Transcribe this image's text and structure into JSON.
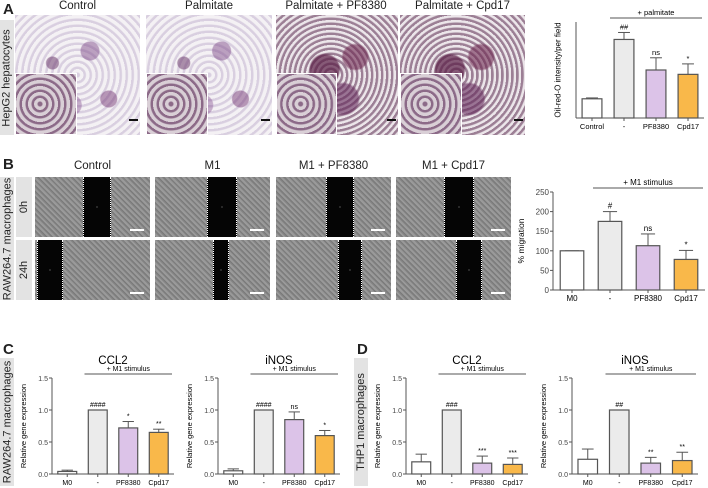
{
  "panel_labels": [
    "A",
    "B",
    "C",
    "D"
  ],
  "panelA": {
    "cell_label": "HepG2 hepatocytes",
    "conditions": [
      "Control",
      "Palmitate",
      "Palmitate + PF8380",
      "Palmitate + Cpd17"
    ]
  },
  "panelB": {
    "cell_label": "RAW264.7 macrophages",
    "conditions": [
      "Control",
      "M1",
      "M1 + PF8380",
      "M1 + Cpd17"
    ],
    "timepoints": [
      "0h",
      "24h"
    ]
  },
  "panelC": {
    "cell_label": "RAW264.7 macrophages"
  },
  "panelD": {
    "cell_label": "THP1 macrophages"
  },
  "colors": {
    "control": "#ffffff",
    "stimulus": "#ebebeb",
    "pf8380": "#dcc3e8",
    "cpd17": "#f9b84a",
    "edge": "#555555"
  },
  "chart_data": [
    {
      "id": "A",
      "type": "bar",
      "title": "",
      "ylabel": "Oil-red-O intensity/per field",
      "ylim": [
        0,
        5.5
      ],
      "yticks": [],
      "categories": [
        "Control",
        "-",
        "PF8380",
        "Cpd17"
      ],
      "values": [
        1.1,
        4.5,
        2.75,
        2.5
      ],
      "errors": [
        0.05,
        0.4,
        0.7,
        0.6
      ],
      "significance": [
        "",
        "##",
        "ns",
        "*"
      ],
      "bracket": {
        "label": "+ palmitate",
        "from": 1,
        "to": 3
      }
    },
    {
      "id": "B",
      "type": "bar",
      "title": "",
      "ylabel": "% migration",
      "ylim": [
        0,
        250
      ],
      "yticks": [
        "0",
        "50",
        "100",
        "150",
        "200",
        "250"
      ],
      "categories": [
        "M0",
        "-",
        "PF8380",
        "Cpd17"
      ],
      "values": [
        100,
        175,
        113,
        78
      ],
      "errors": [
        0,
        25,
        30,
        23
      ],
      "significance": [
        "",
        "#",
        "ns",
        "*"
      ],
      "bracket": {
        "label": "+ M1 stimulus",
        "from": 1,
        "to": 3
      }
    },
    {
      "id": "C1",
      "type": "bar",
      "title": "CCL2",
      "ylabel": "Relative gene expression",
      "ylim": [
        0,
        1.5
      ],
      "yticks": [
        "0.0",
        "0.5",
        "1.0",
        "1.5"
      ],
      "categories": [
        "M0",
        "-",
        "PF8380",
        "Cpd17"
      ],
      "values": [
        0.04,
        1.0,
        0.72,
        0.65
      ],
      "errors": [
        0.02,
        0,
        0.1,
        0.05
      ],
      "significance": [
        "",
        "####",
        "*",
        "**"
      ],
      "bracket": {
        "label": "+ M1 stimulus",
        "from": 1,
        "to": 3
      }
    },
    {
      "id": "C2",
      "type": "bar",
      "title": "iNOS",
      "ylabel": "Relative gene expression",
      "ylim": [
        0,
        1.5
      ],
      "yticks": [
        "0.0",
        "0.5",
        "1.0",
        "1.5"
      ],
      "categories": [
        "M0",
        "-",
        "PF8380",
        "Cpd17"
      ],
      "values": [
        0.05,
        1.0,
        0.85,
        0.6
      ],
      "errors": [
        0.03,
        0,
        0.12,
        0.08
      ],
      "significance": [
        "",
        "####",
        "ns",
        "*"
      ],
      "bracket": {
        "label": "+ M1 stimulus",
        "from": 1,
        "to": 3
      }
    },
    {
      "id": "D1",
      "type": "bar",
      "title": "CCL2",
      "ylabel": "Relative gene expression",
      "ylim": [
        0,
        1.5
      ],
      "yticks": [
        "0.0",
        "0.5",
        "1.0",
        "1.5"
      ],
      "categories": [
        "M0",
        "-",
        "PF8380",
        "Cpd17"
      ],
      "values": [
        0.19,
        1.0,
        0.17,
        0.15
      ],
      "errors": [
        0.12,
        0,
        0.11,
        0.1
      ],
      "significance": [
        "",
        "###",
        "***",
        "***"
      ],
      "bracket": {
        "label": "+ M1 stimulus",
        "from": 1,
        "to": 3
      }
    },
    {
      "id": "D2",
      "type": "bar",
      "title": "iNOS",
      "ylabel": "Relative gene expression",
      "ylim": [
        0,
        1.5
      ],
      "yticks": [
        "0.0",
        "0.5",
        "1.0",
        "1.5"
      ],
      "categories": [
        "M0",
        "-",
        "PF8380",
        "Cpd17"
      ],
      "values": [
        0.23,
        1.0,
        0.17,
        0.21
      ],
      "errors": [
        0.16,
        0,
        0.09,
        0.13
      ],
      "significance": [
        "",
        "##",
        "**",
        "**"
      ],
      "bracket": {
        "label": "+ M1 stimulus",
        "from": 1,
        "to": 3
      }
    }
  ]
}
